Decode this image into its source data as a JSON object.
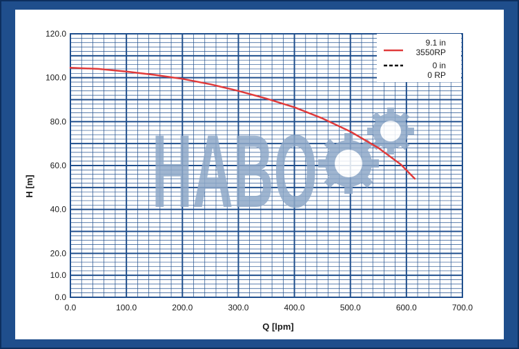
{
  "chart_data": {
    "type": "line",
    "xlabel": "Q [lpm]",
    "ylabel": "H [m]",
    "xlim": [
      0,
      700
    ],
    "ylim": [
      0,
      120
    ],
    "grid": true,
    "legend_position": "top-right",
    "x_ticks": [
      {
        "value": 0,
        "label": "0.0"
      },
      {
        "value": 100,
        "label": "100.0"
      },
      {
        "value": 200,
        "label": "200.0"
      },
      {
        "value": 300,
        "label": "300.0"
      },
      {
        "value": 400,
        "label": "400.0"
      },
      {
        "value": 500,
        "label": "500.0"
      },
      {
        "value": 600,
        "label": "600.0"
      },
      {
        "value": 700,
        "label": "700.0"
      }
    ],
    "y_ticks": [
      {
        "value": 0,
        "label": "0.0"
      },
      {
        "value": 10,
        "label": "10.0"
      },
      {
        "value": 20,
        "label": "20.0"
      },
      {
        "value": 40,
        "label": "40.0"
      },
      {
        "value": 60,
        "label": "60.0"
      },
      {
        "value": 80,
        "label": "80.0"
      },
      {
        "value": 100,
        "label": "100.0"
      },
      {
        "value": 120,
        "label": "120.0"
      }
    ],
    "series": [
      {
        "name_line1": "9.1 in",
        "name_line2": "3550RP",
        "color": "#e03a3a",
        "dash": "solid",
        "points": [
          [
            0,
            104.5
          ],
          [
            50,
            104
          ],
          [
            100,
            102.8
          ],
          [
            150,
            101.3
          ],
          [
            200,
            99.5
          ],
          [
            250,
            97
          ],
          [
            300,
            94
          ],
          [
            350,
            90.5
          ],
          [
            400,
            86.5
          ],
          [
            450,
            81.5
          ],
          [
            500,
            75.5
          ],
          [
            550,
            68
          ],
          [
            590,
            60.5
          ],
          [
            615,
            54
          ]
        ]
      },
      {
        "name_line1": "0 in",
        "name_line2": "0 RP",
        "color": "#000000",
        "dash": "dashed",
        "points": []
      }
    ]
  },
  "watermark": {
    "text": "HABO",
    "color": "#8fa9c8"
  },
  "colors": {
    "frame": "#1f4e8c",
    "grid_major": "#1f4e8c",
    "grid_minor": "#1f4e8c",
    "series_1": "#e03a3a"
  }
}
